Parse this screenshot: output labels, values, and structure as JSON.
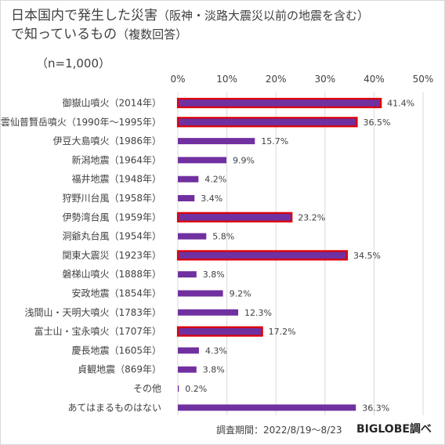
{
  "title_line1": "日本国内で発生した災害",
  "title_line1_paren": "（阪神・淡路大震災以前の地震を含む）",
  "title_line2": "で知っているもの",
  "title_line2_paren": "（複数回答）",
  "sample_size": "（n=1,000）",
  "footer_note": "調査期間：2022/8/19～8/23",
  "brand": "BIGLOBE調べ",
  "colors": {
    "bar": "#7030a0",
    "highlight_border": "#e00000",
    "grid": "#d9d9d9"
  },
  "chart_data": {
    "type": "bar",
    "orientation": "horizontal",
    "xlim": [
      0,
      50
    ],
    "xticks": [
      "0%",
      "10%",
      "20%",
      "30%",
      "40%",
      "50%"
    ],
    "xtick_values": [
      0,
      10,
      20,
      30,
      40,
      50
    ],
    "grid": true,
    "categories": [
      "御嶽山噴火（2014年）",
      "雲仙普賢岳噴火（1990年～1995年）",
      "伊豆大島噴火（1986年）",
      "新潟地震（1964年）",
      "福井地震（1948年）",
      "狩野川台風（1958年）",
      "伊勢湾台風（1959年）",
      "洞爺丸台風（1954年）",
      "関東大震災（1923年）",
      "磐梯山噴火（1888年）",
      "安政地震（1854年）",
      "浅間山・天明大噴火（1783年）",
      "富士山・宝永噴火（1707年）",
      "慶長地震（1605年）",
      "貞観地震（869年）",
      "その他",
      "あてはまるものはない"
    ],
    "values": [
      41.4,
      36.5,
      15.7,
      9.9,
      4.2,
      3.4,
      23.2,
      5.8,
      34.5,
      3.8,
      9.2,
      12.3,
      17.2,
      4.3,
      3.8,
      0.2,
      36.3
    ],
    "value_labels": [
      "41.4%",
      "36.5%",
      "15.7%",
      "9.9%",
      "4.2%",
      "3.4%",
      "23.2%",
      "5.8%",
      "34.5%",
      "3.8%",
      "9.2%",
      "12.3%",
      "17.2%",
      "4.3%",
      "3.8%",
      "0.2%",
      "36.3%"
    ],
    "highlighted": [
      true,
      true,
      false,
      false,
      false,
      false,
      true,
      false,
      true,
      false,
      false,
      false,
      true,
      false,
      false,
      false,
      false
    ]
  }
}
